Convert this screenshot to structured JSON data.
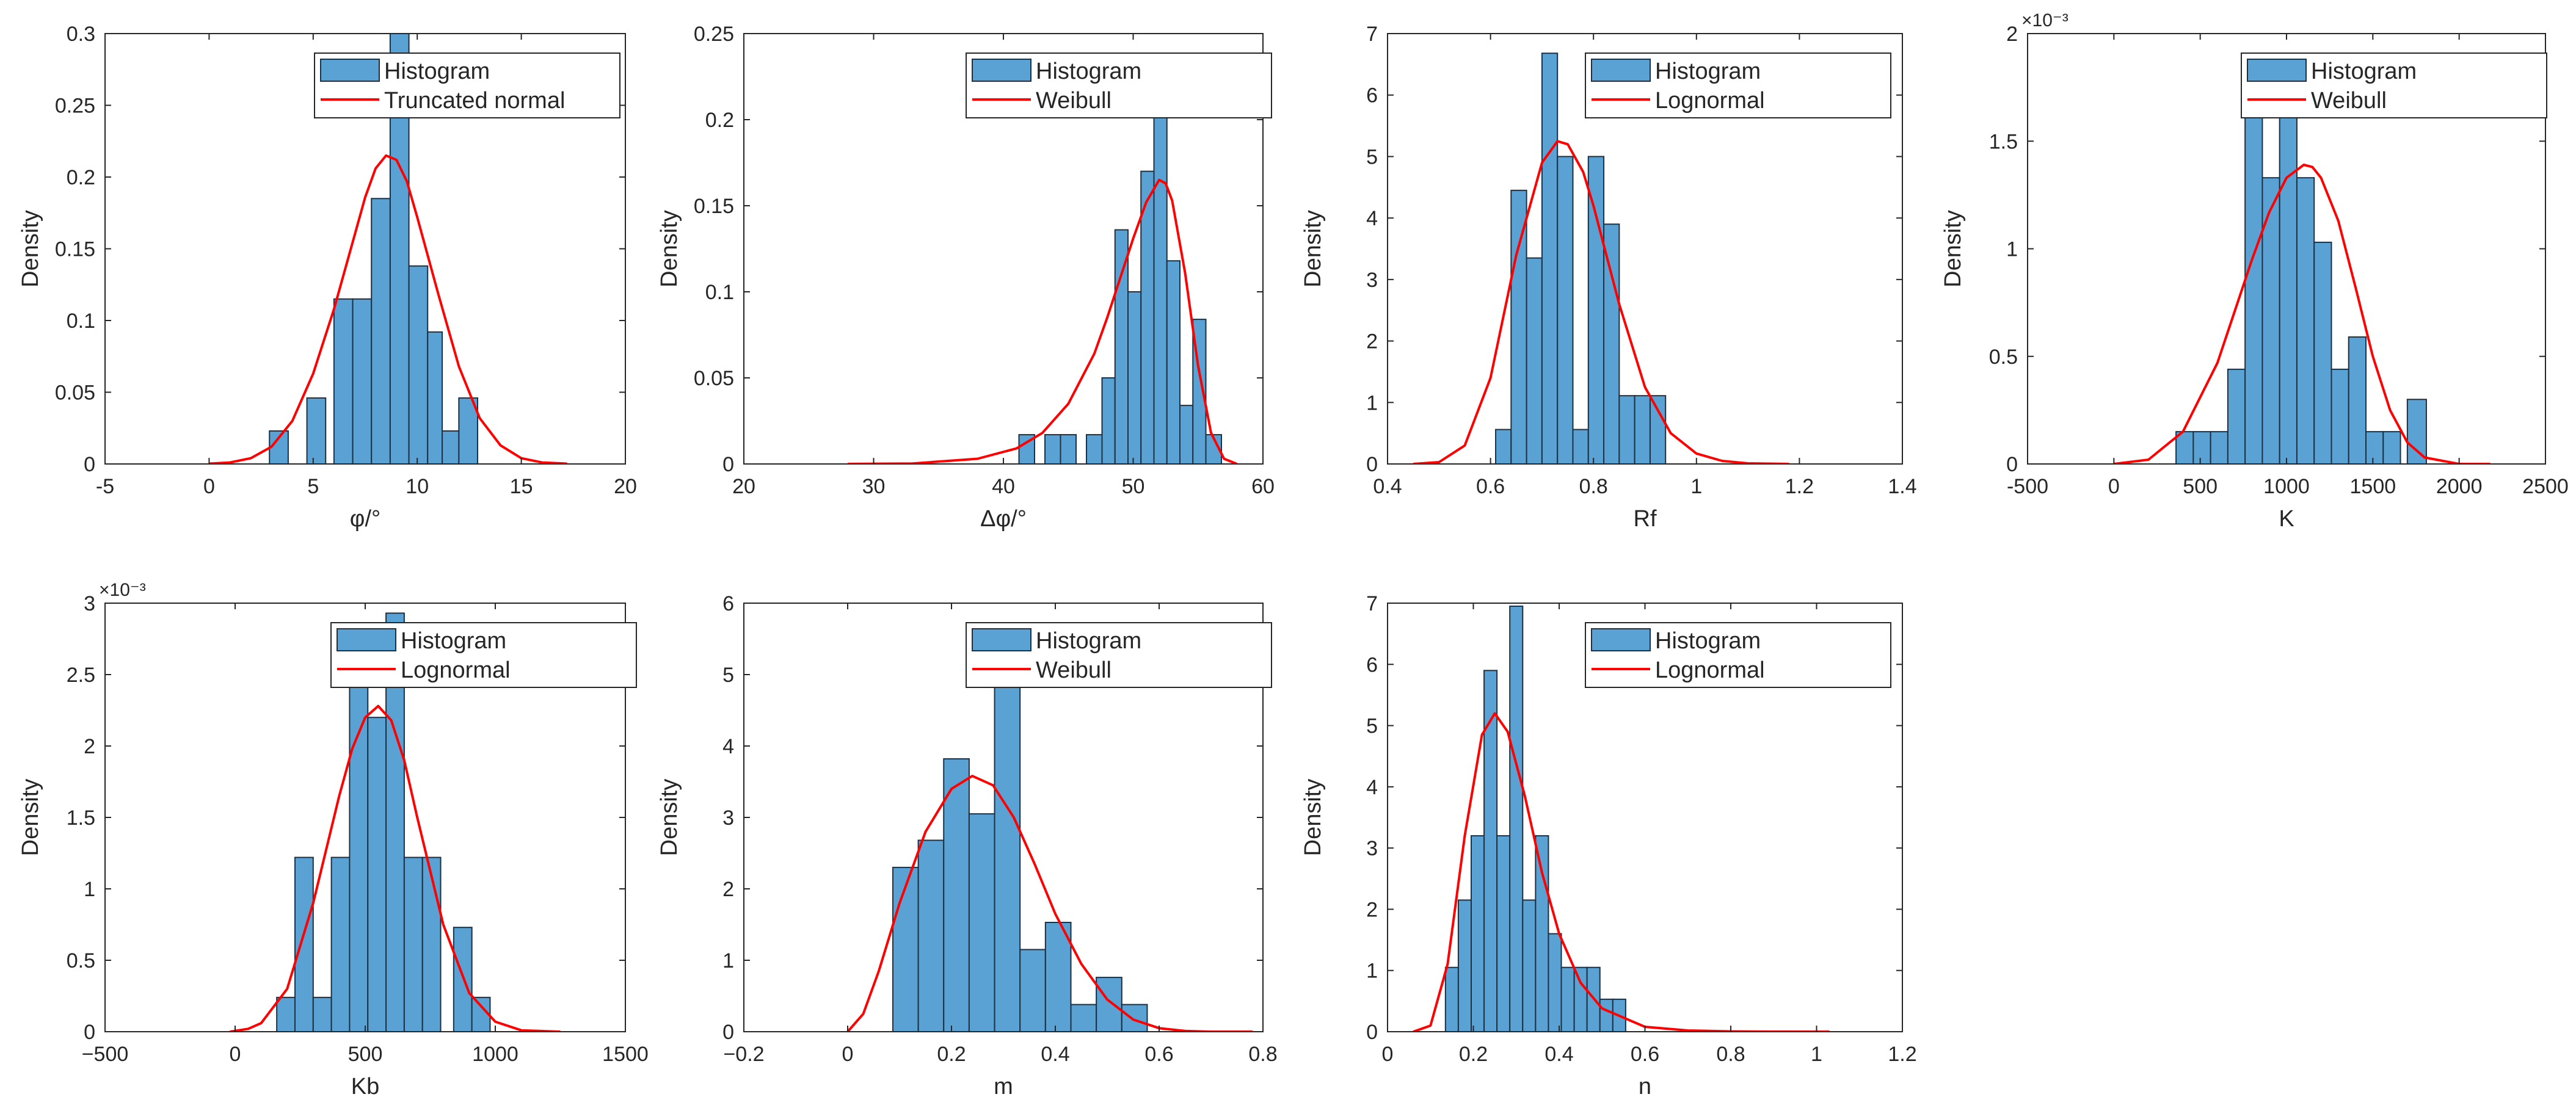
{
  "colors": {
    "bar_fill": "#5aa2d4",
    "bar_edge": "#1f3040",
    "fit_line": "#ff0000",
    "axes": "#262626"
  },
  "chart_data": [
    {
      "id": "phi",
      "type": "bar",
      "title": "",
      "xlabel": "φ/°",
      "ylabel": "Density",
      "xlim": [
        -5,
        20
      ],
      "ylim": [
        0,
        0.3
      ],
      "xticks": [
        -5,
        0,
        5,
        10,
        15,
        20
      ],
      "xtick_labels": [
        "-5",
        "0",
        "5",
        "10",
        "15",
        "20"
      ],
      "yticks": [
        0,
        0.05,
        0.1,
        0.15,
        0.2,
        0.25,
        0.3
      ],
      "ytick_labels": [
        "0",
        "0.05",
        "0.1",
        "0.15",
        "0.2",
        "0.25",
        "0.3"
      ],
      "exponent": "",
      "bins": [
        {
          "x0": 2.9,
          "x1": 3.8,
          "value": 0.023
        },
        {
          "x0": 4.7,
          "x1": 5.6,
          "value": 0.046
        },
        {
          "x0": 6.0,
          "x1": 6.9,
          "value": 0.115
        },
        {
          "x0": 6.9,
          "x1": 7.8,
          "value": 0.115
        },
        {
          "x0": 7.8,
          "x1": 8.7,
          "value": 0.185
        },
        {
          "x0": 8.7,
          "x1": 9.6,
          "value": 0.3
        },
        {
          "x0": 9.6,
          "x1": 10.5,
          "value": 0.138
        },
        {
          "x0": 10.5,
          "x1": 11.2,
          "value": 0.092
        },
        {
          "x0": 11.2,
          "x1": 12.0,
          "value": 0.023
        },
        {
          "x0": 12.0,
          "x1": 12.9,
          "value": 0.046
        }
      ],
      "fit_name": "Truncated normal",
      "fit": {
        "x": [
          0,
          1,
          2,
          3,
          4,
          5,
          6,
          7,
          7.5,
          8,
          8.5,
          9,
          9.5,
          10,
          11,
          12,
          13,
          14,
          15,
          16,
          17.2
        ],
        "y": [
          0.0002,
          0.001,
          0.004,
          0.012,
          0.03,
          0.063,
          0.108,
          0.16,
          0.186,
          0.206,
          0.215,
          0.212,
          0.197,
          0.172,
          0.119,
          0.068,
          0.032,
          0.013,
          0.004,
          0.001,
          0.0002
        ]
      },
      "legend": [
        "Histogram",
        "Truncated normal"
      ]
    },
    {
      "id": "dphi",
      "type": "bar",
      "title": "",
      "xlabel": "Δφ/°",
      "ylabel": "Density",
      "xlim": [
        20,
        60
      ],
      "ylim": [
        0,
        0.25
      ],
      "xticks": [
        20,
        30,
        40,
        50,
        60
      ],
      "xtick_labels": [
        "20",
        "30",
        "40",
        "50",
        "60"
      ],
      "yticks": [
        0,
        0.05,
        0.1,
        0.15,
        0.2,
        0.25
      ],
      "ytick_labels": [
        "0",
        "0.05",
        "0.1",
        "0.15",
        "0.2",
        "0.25"
      ],
      "exponent": "",
      "bins": [
        {
          "x0": 41.2,
          "x1": 42.4,
          "value": 0.017
        },
        {
          "x0": 43.2,
          "x1": 44.4,
          "value": 0.017
        },
        {
          "x0": 44.4,
          "x1": 45.6,
          "value": 0.017
        },
        {
          "x0": 46.4,
          "x1": 47.6,
          "value": 0.017
        },
        {
          "x0": 47.6,
          "x1": 48.6,
          "value": 0.05
        },
        {
          "x0": 48.6,
          "x1": 49.6,
          "value": 0.136
        },
        {
          "x0": 49.6,
          "x1": 50.6,
          "value": 0.1
        },
        {
          "x0": 50.6,
          "x1": 51.6,
          "value": 0.17
        },
        {
          "x0": 51.6,
          "x1": 52.6,
          "value": 0.203
        },
        {
          "x0": 52.6,
          "x1": 53.6,
          "value": 0.118
        },
        {
          "x0": 53.6,
          "x1": 54.6,
          "value": 0.034
        },
        {
          "x0": 54.6,
          "x1": 55.6,
          "value": 0.084
        },
        {
          "x0": 55.6,
          "x1": 56.8,
          "value": 0.017
        }
      ],
      "fit_name": "Weibull",
      "fit": {
        "x": [
          28,
          33,
          38,
          41,
          43,
          45,
          47,
          48,
          49,
          50,
          51,
          52,
          52.5,
          53,
          54,
          55,
          56,
          57,
          58
        ],
        "y": [
          0,
          0.0003,
          0.003,
          0.009,
          0.018,
          0.035,
          0.064,
          0.085,
          0.108,
          0.131,
          0.152,
          0.165,
          0.163,
          0.153,
          0.111,
          0.057,
          0.018,
          0.003,
          0
        ]
      },
      "legend": [
        "Histogram",
        "Weibull"
      ]
    },
    {
      "id": "rf",
      "type": "bar",
      "title": "",
      "xlabel": "Rf",
      "ylabel": "Density",
      "xlim": [
        0.4,
        1.4
      ],
      "ylim": [
        0,
        7
      ],
      "xticks": [
        0.4,
        0.6,
        0.8,
        1.0,
        1.2,
        1.4
      ],
      "xtick_labels": [
        "0.4",
        "0.6",
        "0.8",
        "1",
        "1.2",
        "1.4"
      ],
      "yticks": [
        0,
        1,
        2,
        3,
        4,
        5,
        6,
        7
      ],
      "ytick_labels": [
        "0",
        "1",
        "2",
        "3",
        "4",
        "5",
        "6",
        "7"
      ],
      "exponent": "",
      "bins": [
        {
          "x0": 0.61,
          "x1": 0.64,
          "value": 0.56
        },
        {
          "x0": 0.64,
          "x1": 0.67,
          "value": 4.45
        },
        {
          "x0": 0.67,
          "x1": 0.7,
          "value": 3.35
        },
        {
          "x0": 0.7,
          "x1": 0.73,
          "value": 6.68
        },
        {
          "x0": 0.73,
          "x1": 0.76,
          "value": 5.0
        },
        {
          "x0": 0.76,
          "x1": 0.79,
          "value": 0.56
        },
        {
          "x0": 0.79,
          "x1": 0.82,
          "value": 5.0
        },
        {
          "x0": 0.82,
          "x1": 0.85,
          "value": 3.9
        },
        {
          "x0": 0.85,
          "x1": 0.88,
          "value": 1.11
        },
        {
          "x0": 0.88,
          "x1": 0.91,
          "value": 1.11
        },
        {
          "x0": 0.91,
          "x1": 0.94,
          "value": 1.11
        }
      ],
      "fit_name": "Lognormal",
      "fit": {
        "x": [
          0.45,
          0.5,
          0.55,
          0.6,
          0.65,
          0.7,
          0.73,
          0.75,
          0.78,
          0.8,
          0.85,
          0.9,
          0.95,
          1.0,
          1.05,
          1.1,
          1.18
        ],
        "y": [
          0,
          0.03,
          0.3,
          1.4,
          3.4,
          4.9,
          5.25,
          5.2,
          4.75,
          4.2,
          2.6,
          1.25,
          0.5,
          0.17,
          0.05,
          0.01,
          0
        ]
      },
      "legend": [
        "Histogram",
        "Lognormal"
      ]
    },
    {
      "id": "k",
      "type": "bar",
      "title": "",
      "xlabel": "K",
      "ylabel": "Density",
      "xlim": [
        -500,
        2500
      ],
      "ylim": [
        0,
        2
      ],
      "xticks": [
        -500,
        0,
        500,
        1000,
        1500,
        2000,
        2500
      ],
      "xtick_labels": [
        "-500",
        "0",
        "500",
        "1000",
        "1500",
        "2000",
        "2500"
      ],
      "yticks": [
        0,
        0.5,
        1,
        1.5,
        2
      ],
      "ytick_labels": [
        "0",
        "0.5",
        "1",
        "1.5",
        "2"
      ],
      "exponent": "×10⁻³",
      "bins": [
        {
          "x0": 360,
          "x1": 460,
          "value": 0.15
        },
        {
          "x0": 460,
          "x1": 560,
          "value": 0.15
        },
        {
          "x0": 560,
          "x1": 660,
          "value": 0.15
        },
        {
          "x0": 660,
          "x1": 760,
          "value": 0.44
        },
        {
          "x0": 760,
          "x1": 860,
          "value": 1.63
        },
        {
          "x0": 860,
          "x1": 960,
          "value": 1.33
        },
        {
          "x0": 960,
          "x1": 1060,
          "value": 1.63
        },
        {
          "x0": 1060,
          "x1": 1160,
          "value": 1.33
        },
        {
          "x0": 1160,
          "x1": 1260,
          "value": 1.03
        },
        {
          "x0": 1260,
          "x1": 1360,
          "value": 0.44
        },
        {
          "x0": 1360,
          "x1": 1460,
          "value": 0.59
        },
        {
          "x0": 1460,
          "x1": 1560,
          "value": 0.15
        },
        {
          "x0": 1560,
          "x1": 1660,
          "value": 0.15
        },
        {
          "x0": 1700,
          "x1": 1810,
          "value": 0.3
        }
      ],
      "fit_name": "Weibull",
      "fit": {
        "x": [
          0,
          200,
          400,
          600,
          800,
          900,
          1000,
          1100,
          1150,
          1200,
          1300,
          1400,
          1500,
          1600,
          1700,
          1800,
          2000,
          2180
        ],
        "y": [
          0,
          0.02,
          0.15,
          0.47,
          0.95,
          1.17,
          1.33,
          1.39,
          1.38,
          1.33,
          1.13,
          0.82,
          0.5,
          0.25,
          0.1,
          0.03,
          0,
          0
        ]
      },
      "legend": [
        "Histogram",
        "Weibull"
      ]
    },
    {
      "id": "kb",
      "type": "bar",
      "title": "",
      "xlabel": "Kb",
      "ylabel": "Density",
      "xlim": [
        -500,
        1500
      ],
      "ylim": [
        0,
        3
      ],
      "xticks": [
        -500,
        0,
        500,
        1000,
        1500
      ],
      "xtick_labels": [
        "−500",
        "0",
        "500",
        "1000",
        "1500"
      ],
      "yticks": [
        0,
        0.5,
        1,
        1.5,
        2,
        2.5,
        3
      ],
      "ytick_labels": [
        "0",
        "0.5",
        "1",
        "1.5",
        "2",
        "2.5",
        "3"
      ],
      "exponent": "×10⁻³",
      "bins": [
        {
          "x0": 160,
          "x1": 230,
          "value": 0.24
        },
        {
          "x0": 230,
          "x1": 300,
          "value": 1.22
        },
        {
          "x0": 300,
          "x1": 370,
          "value": 0.24
        },
        {
          "x0": 370,
          "x1": 440,
          "value": 1.22
        },
        {
          "x0": 440,
          "x1": 510,
          "value": 2.45
        },
        {
          "x0": 510,
          "x1": 580,
          "value": 2.2
        },
        {
          "x0": 580,
          "x1": 650,
          "value": 2.93
        },
        {
          "x0": 650,
          "x1": 720,
          "value": 1.22
        },
        {
          "x0": 720,
          "x1": 790,
          "value": 1.22
        },
        {
          "x0": 840,
          "x1": 910,
          "value": 0.73
        },
        {
          "x0": 910,
          "x1": 980,
          "value": 0.24
        }
      ],
      "fit_name": "Lognormal",
      "fit": {
        "x": [
          -20,
          50,
          100,
          200,
          300,
          400,
          450,
          500,
          550,
          600,
          650,
          700,
          800,
          900,
          1000,
          1100,
          1250
        ],
        "y": [
          0,
          0.02,
          0.06,
          0.3,
          0.9,
          1.65,
          1.98,
          2.2,
          2.28,
          2.18,
          1.9,
          1.5,
          0.75,
          0.27,
          0.07,
          0.01,
          0
        ]
      },
      "legend": [
        "Histogram",
        "Lognormal"
      ]
    },
    {
      "id": "m",
      "type": "bar",
      "title": "",
      "xlabel": "m",
      "ylabel": "Density",
      "xlim": [
        -0.2,
        0.8
      ],
      "ylim": [
        0,
        6
      ],
      "xticks": [
        -0.2,
        0,
        0.2,
        0.4,
        0.6,
        0.8
      ],
      "xtick_labels": [
        "−0.2",
        "0",
        "0.2",
        "0.4",
        "0.6",
        "0.8"
      ],
      "yticks": [
        0,
        1,
        2,
        3,
        4,
        5,
        6
      ],
      "ytick_labels": [
        "0",
        "1",
        "2",
        "3",
        "4",
        "5",
        "6"
      ],
      "exponent": "",
      "bins": [
        {
          "x0": 0.087,
          "x1": 0.136,
          "value": 2.3
        },
        {
          "x0": 0.136,
          "x1": 0.185,
          "value": 2.68
        },
        {
          "x0": 0.185,
          "x1": 0.234,
          "value": 3.82
        },
        {
          "x0": 0.234,
          "x1": 0.283,
          "value": 3.05
        },
        {
          "x0": 0.283,
          "x1": 0.332,
          "value": 5.35
        },
        {
          "x0": 0.332,
          "x1": 0.381,
          "value": 1.15
        },
        {
          "x0": 0.381,
          "x1": 0.43,
          "value": 1.53
        },
        {
          "x0": 0.43,
          "x1": 0.479,
          "value": 0.38
        },
        {
          "x0": 0.479,
          "x1": 0.528,
          "value": 0.76
        },
        {
          "x0": 0.528,
          "x1": 0.577,
          "value": 0.38
        }
      ],
      "fit_name": "Weibull",
      "fit": {
        "x": [
          0,
          0.03,
          0.06,
          0.1,
          0.15,
          0.2,
          0.24,
          0.28,
          0.32,
          0.36,
          0.4,
          0.45,
          0.5,
          0.55,
          0.6,
          0.65,
          0.7,
          0.78
        ],
        "y": [
          0,
          0.25,
          0.85,
          1.8,
          2.8,
          3.4,
          3.58,
          3.45,
          3.0,
          2.35,
          1.65,
          0.95,
          0.45,
          0.17,
          0.05,
          0.01,
          0,
          0
        ]
      },
      "legend": [
        "Histogram",
        "Weibull"
      ]
    },
    {
      "id": "n",
      "type": "bar",
      "title": "",
      "xlabel": "n",
      "ylabel": "Density",
      "xlim": [
        0,
        1.2
      ],
      "ylim": [
        0,
        7
      ],
      "xticks": [
        0,
        0.2,
        0.4,
        0.6,
        0.8,
        1.0,
        1.2
      ],
      "xtick_labels": [
        "0",
        "0.2",
        "0.4",
        "0.6",
        "0.8",
        "1",
        "1.2"
      ],
      "yticks": [
        0,
        1,
        2,
        3,
        4,
        5,
        6,
        7
      ],
      "ytick_labels": [
        "0",
        "1",
        "2",
        "3",
        "4",
        "5",
        "6",
        "7"
      ],
      "exponent": "",
      "bins": [
        {
          "x0": 0.135,
          "x1": 0.165,
          "value": 1.05
        },
        {
          "x0": 0.165,
          "x1": 0.195,
          "value": 2.15
        },
        {
          "x0": 0.195,
          "x1": 0.225,
          "value": 3.2
        },
        {
          "x0": 0.225,
          "x1": 0.255,
          "value": 5.9
        },
        {
          "x0": 0.255,
          "x1": 0.285,
          "value": 3.2
        },
        {
          "x0": 0.285,
          "x1": 0.315,
          "value": 6.95
        },
        {
          "x0": 0.315,
          "x1": 0.345,
          "value": 2.15
        },
        {
          "x0": 0.345,
          "x1": 0.375,
          "value": 3.2
        },
        {
          "x0": 0.375,
          "x1": 0.405,
          "value": 1.6
        },
        {
          "x0": 0.405,
          "x1": 0.435,
          "value": 1.05
        },
        {
          "x0": 0.435,
          "x1": 0.465,
          "value": 1.05
        },
        {
          "x0": 0.465,
          "x1": 0.495,
          "value": 1.05
        },
        {
          "x0": 0.495,
          "x1": 0.525,
          "value": 0.53
        },
        {
          "x0": 0.525,
          "x1": 0.555,
          "value": 0.53
        }
      ],
      "fit_name": "Lognormal",
      "fit": {
        "x": [
          0.06,
          0.1,
          0.14,
          0.18,
          0.22,
          0.25,
          0.28,
          0.32,
          0.36,
          0.4,
          0.45,
          0.5,
          0.6,
          0.7,
          0.8,
          0.9,
          1.03
        ],
        "y": [
          0,
          0.1,
          1.1,
          3.2,
          4.85,
          5.2,
          4.9,
          3.85,
          2.6,
          1.6,
          0.8,
          0.38,
          0.08,
          0.02,
          0.005,
          0.001,
          0
        ]
      },
      "legend": [
        "Histogram",
        "Lognormal"
      ]
    }
  ]
}
